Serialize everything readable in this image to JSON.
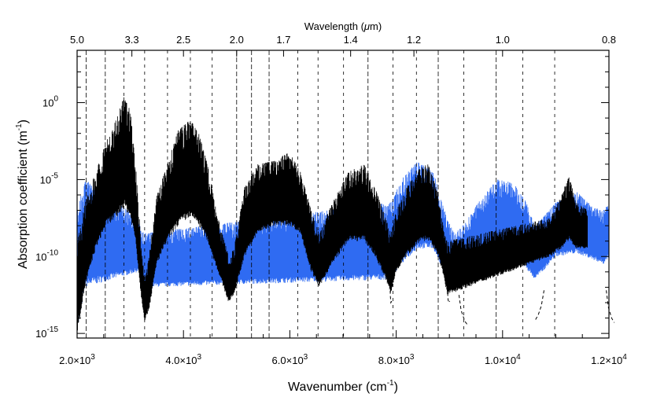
{
  "chart_data": {
    "type": "scatter",
    "title": "",
    "xlabel": "Wavenumber (cm",
    "xlabel_sup": "-1",
    "xlabel_close": ")",
    "ylabel": "Absorption coefficient (m",
    "ylabel_sup": "-1",
    "ylabel_close": ")",
    "top_axis_label": "Wavelength (",
    "top_axis_mu": "μ",
    "top_axis_unit": "m)",
    "xlim": [
      2000,
      12000
    ],
    "ylim_log10": [
      -15.3,
      3.4
    ],
    "yscale": "log",
    "grid": false,
    "x_ticks": [
      {
        "value": 2000,
        "mant": "2.0",
        "exp": "3"
      },
      {
        "value": 4000,
        "mant": "4.0",
        "exp": "3"
      },
      {
        "value": 6000,
        "mant": "6.0",
        "exp": "3"
      },
      {
        "value": 8000,
        "mant": "8.0",
        "exp": "3"
      },
      {
        "value": 10000,
        "mant": "1.0",
        "exp": "4"
      },
      {
        "value": 12000,
        "mant": "1.2",
        "exp": "4"
      }
    ],
    "y_ticks": [
      {
        "log10": 0,
        "base": "10",
        "exp": "0"
      },
      {
        "log10": -5,
        "base": "10",
        "exp": "-5"
      },
      {
        "log10": -10,
        "base": "10",
        "exp": "-10"
      },
      {
        "log10": -15,
        "base": "10",
        "exp": "-15"
      }
    ],
    "top_ticks": [
      {
        "wavenumber": 2000,
        "label": "5.0"
      },
      {
        "wavenumber": 3030,
        "label": "3.3"
      },
      {
        "wavenumber": 4000,
        "label": "2.5"
      },
      {
        "wavenumber": 5000,
        "label": "2.0"
      },
      {
        "wavenumber": 5882,
        "label": "1.7"
      },
      {
        "wavenumber": 7143,
        "label": "1.4"
      },
      {
        "wavenumber": 8333,
        "label": "1.2"
      },
      {
        "wavenumber": 10000,
        "label": "1.0"
      },
      {
        "wavenumber": 12000,
        "label": "0.8"
      }
    ],
    "band_boundaries": [
      {
        "wavenumber": 2170,
        "style": "long-dash"
      },
      {
        "wavenumber": 2530,
        "style": "long-dash"
      },
      {
        "wavenumber": 2880,
        "style": "short-dash"
      },
      {
        "wavenumber": 3270,
        "style": "short-dash"
      },
      {
        "wavenumber": 3700,
        "style": "short-dash"
      },
      {
        "wavenumber": 4130,
        "style": "short-dash"
      },
      {
        "wavenumber": 4540,
        "style": "short-dash"
      },
      {
        "wavenumber": 5000,
        "style": "long-dash"
      },
      {
        "wavenumber": 5280,
        "style": "long-dash"
      },
      {
        "wavenumber": 5610,
        "style": "long-dash"
      },
      {
        "wavenumber": 6150,
        "style": "short-dash"
      },
      {
        "wavenumber": 6530,
        "style": "short-dash"
      },
      {
        "wavenumber": 7010,
        "style": "short-dash"
      },
      {
        "wavenumber": 7470,
        "style": "long-dash"
      },
      {
        "wavenumber": 7940,
        "style": "short-dash"
      },
      {
        "wavenumber": 8380,
        "style": "short-dash"
      },
      {
        "wavenumber": 8790,
        "style": "long-dash"
      },
      {
        "wavenumber": 9270,
        "style": "short-dash"
      },
      {
        "wavenumber": 9880,
        "style": "long-dash"
      },
      {
        "wavenumber": 10380,
        "style": "short-dash"
      },
      {
        "wavenumber": 10980,
        "style": "short-dash"
      }
    ],
    "series": [
      {
        "color": "#000000",
        "envelope": [
          {
            "x": 2000,
            "ymin": -15.0,
            "ymax": -9.0
          },
          {
            "x": 2150,
            "ymin": -12.0,
            "ymax": -6.5
          },
          {
            "x": 2350,
            "ymin": -9.5,
            "ymax": -4.5
          },
          {
            "x": 2550,
            "ymin": -8.0,
            "ymax": -2.5
          },
          {
            "x": 2750,
            "ymin": -7.5,
            "ymax": -1.0
          },
          {
            "x": 2880,
            "ymin": -6.8,
            "ymax": 0.4
          },
          {
            "x": 3000,
            "ymin": -7.5,
            "ymax": -0.5
          },
          {
            "x": 3100,
            "ymin": -9.0,
            "ymax": -4.0
          },
          {
            "x": 3200,
            "ymin": -12.5,
            "ymax": -9.0
          },
          {
            "x": 3270,
            "ymin": -14.2,
            "ymax": -11.5
          },
          {
            "x": 3350,
            "ymin": -13.5,
            "ymax": -10.0
          },
          {
            "x": 3500,
            "ymin": -10.5,
            "ymax": -6.0
          },
          {
            "x": 3700,
            "ymin": -9.0,
            "ymax": -4.0
          },
          {
            "x": 3900,
            "ymin": -8.0,
            "ymax": -1.8
          },
          {
            "x": 4100,
            "ymin": -7.5,
            "ymax": -1.2
          },
          {
            "x": 4250,
            "ymin": -7.8,
            "ymax": -1.5
          },
          {
            "x": 4450,
            "ymin": -9.0,
            "ymax": -4.0
          },
          {
            "x": 4650,
            "ymin": -11.0,
            "ymax": -7.5
          },
          {
            "x": 4850,
            "ymin": -13.0,
            "ymax": -10.0
          },
          {
            "x": 4950,
            "ymin": -12.5,
            "ymax": -9.5
          },
          {
            "x": 5150,
            "ymin": -10.0,
            "ymax": -5.5
          },
          {
            "x": 5400,
            "ymin": -8.5,
            "ymax": -4.0
          },
          {
            "x": 5700,
            "ymin": -8.0,
            "ymax": -3.8
          },
          {
            "x": 6000,
            "ymin": -8.0,
            "ymax": -3.2
          },
          {
            "x": 6200,
            "ymin": -8.5,
            "ymax": -4.5
          },
          {
            "x": 6400,
            "ymin": -11.0,
            "ymax": -7.0
          },
          {
            "x": 6550,
            "ymin": -12.0,
            "ymax": -8.5
          },
          {
            "x": 6800,
            "ymin": -10.5,
            "ymax": -6.5
          },
          {
            "x": 7100,
            "ymin": -9.0,
            "ymax": -4.5
          },
          {
            "x": 7400,
            "ymin": -9.0,
            "ymax": -4.0
          },
          {
            "x": 7600,
            "ymin": -10.0,
            "ymax": -5.5
          },
          {
            "x": 7800,
            "ymin": -11.5,
            "ymax": -7.5
          },
          {
            "x": 7900,
            "ymin": -12.5,
            "ymax": -8.5
          },
          {
            "x": 8000,
            "ymin": -11.0,
            "ymax": -7.0
          },
          {
            "x": 8200,
            "ymin": -10.0,
            "ymax": -5.5
          },
          {
            "x": 8450,
            "ymin": -9.0,
            "ymax": -4.2
          },
          {
            "x": 8600,
            "ymin": -9.0,
            "ymax": -4.0
          },
          {
            "x": 8800,
            "ymin": -10.0,
            "ymax": -6.0
          },
          {
            "x": 8900,
            "ymin": -11.5,
            "ymax": -8.5
          },
          {
            "x": 8960,
            "ymin": -12.5,
            "ymax": -9.0
          },
          {
            "x": 10900,
            "ymin": -10.0,
            "ymax": -7.5
          },
          {
            "x": 11100,
            "ymin": -9.5,
            "ymax": -6.0
          },
          {
            "x": 11250,
            "ymin": -9.0,
            "ymax": -4.8
          },
          {
            "x": 11400,
            "ymin": -9.5,
            "ymax": -6.5
          },
          {
            "x": 11600,
            "ymin": -9.5,
            "ymax": -7.0
          }
        ]
      },
      {
        "color": "#2f6bf2",
        "envelope": [
          {
            "x": 2000,
            "ymin": -15.0,
            "ymax": -7.0
          },
          {
            "x": 2150,
            "ymin": -12.0,
            "ymax": -5.0
          },
          {
            "x": 3150,
            "ymin": -11.0,
            "ymax": -7.5
          },
          {
            "x": 3250,
            "ymin": -12.0,
            "ymax": -8.5
          },
          {
            "x": 7900,
            "ymin": -11.5,
            "ymax": -6.5
          },
          {
            "x": 8100,
            "ymin": -10.5,
            "ymax": -5.0
          },
          {
            "x": 8400,
            "ymin": -9.5,
            "ymax": -3.8
          },
          {
            "x": 8700,
            "ymin": -9.5,
            "ymax": -4.5
          },
          {
            "x": 8950,
            "ymin": -11.5,
            "ymax": -7.5
          },
          {
            "x": 9100,
            "ymin": -12.0,
            "ymax": -8.5
          },
          {
            "x": 9300,
            "ymin": -11.5,
            "ymax": -7.8
          },
          {
            "x": 9600,
            "ymin": -10.5,
            "ymax": -6.2
          },
          {
            "x": 9900,
            "ymin": -9.8,
            "ymax": -5.0
          },
          {
            "x": 10200,
            "ymin": -10.0,
            "ymax": -5.2
          },
          {
            "x": 10450,
            "ymin": -10.8,
            "ymax": -6.5
          },
          {
            "x": 10600,
            "ymin": -11.5,
            "ymax": -8.0
          },
          {
            "x": 10750,
            "ymin": -11.0,
            "ymax": -7.5
          },
          {
            "x": 11000,
            "ymin": -10.0,
            "ymax": -6.5
          },
          {
            "x": 11400,
            "ymin": -9.8,
            "ymax": -5.8
          },
          {
            "x": 11700,
            "ymin": -10.2,
            "ymax": -6.8
          },
          {
            "x": 11900,
            "ymin": -10.5,
            "ymax": -7.0
          },
          {
            "x": 12000,
            "ymin": -10.0,
            "ymax": -6.5
          }
        ]
      }
    ],
    "dashed_tails": [
      {
        "points": [
          [
            7880,
            -11.5
          ],
          [
            7890,
            -12.6
          ],
          [
            7900,
            -13.0
          ],
          [
            7915,
            -12.9
          ]
        ]
      },
      {
        "points": [
          [
            8960,
            -12.0
          ],
          [
            8975,
            -12.8
          ],
          [
            8990,
            -13.0
          ],
          [
            9005,
            -12.9
          ]
        ]
      },
      {
        "points": [
          [
            9180,
            -12.5
          ],
          [
            9220,
            -13.5
          ],
          [
            9290,
            -14.2
          ],
          [
            9350,
            -14.5
          ]
        ]
      },
      {
        "points": [
          [
            10780,
            -12.2
          ],
          [
            10730,
            -13.2
          ],
          [
            10670,
            -13.8
          ],
          [
            10620,
            -14.1
          ]
        ]
      },
      {
        "points": [
          [
            11950,
            -12.2
          ],
          [
            11990,
            -13.3
          ],
          [
            12050,
            -14.0
          ],
          [
            12100,
            -14.3
          ]
        ]
      }
    ]
  }
}
